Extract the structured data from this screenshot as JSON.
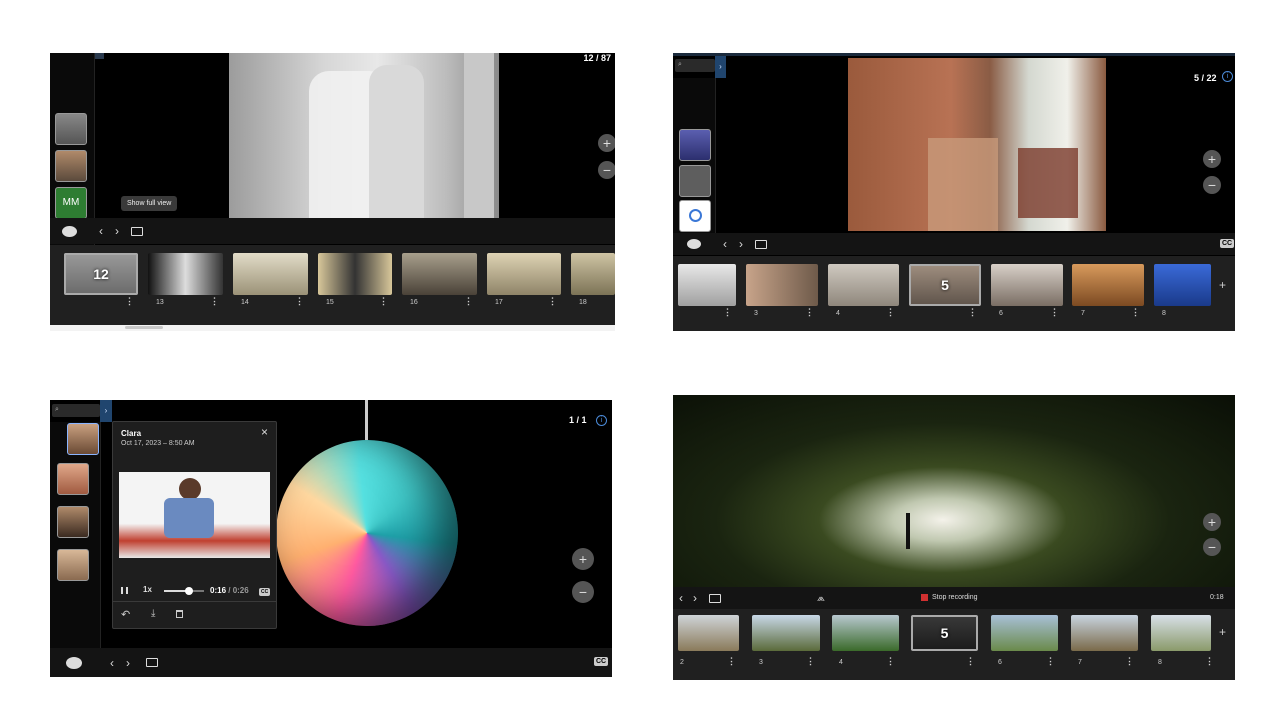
{
  "panel1": {
    "counter": "12 / 87",
    "tooltip": "Show full view",
    "avatar_initials": "MM",
    "thumb_selected_number": "12",
    "thumb_numbers": [
      "13",
      "14",
      "15",
      "16",
      "17",
      "18"
    ],
    "colors": {
      "avatar_mm": "#2e7d32"
    }
  },
  "panel2": {
    "counter": "5 / 22",
    "cc": "CC",
    "thumb_selected_number": "5",
    "thumb_numbers": [
      "3",
      "4",
      "6",
      "7",
      "8"
    ]
  },
  "panel3": {
    "counter": "1 / 1",
    "cc": "CC",
    "comment": {
      "author": "Clara",
      "date": "Oct 17, 2023 – 8:50 AM",
      "speed": "1x",
      "time_current": "0:16",
      "time_separator": " / ",
      "time_total": "0:26",
      "cc": "CC",
      "progress": 0.62
    }
  },
  "panel4": {
    "stop_recording": "Stop recording",
    "elapsed": "0:18",
    "thumb_selected_number": "5",
    "thumb_numbers": [
      "2",
      "3",
      "4",
      "6",
      "7",
      "8"
    ]
  },
  "icons": {
    "zoom_in": "+",
    "zoom_out": "−",
    "prev": "‹",
    "next": "›",
    "close": "×",
    "more": "⋮",
    "add": "+",
    "info": "i",
    "search": "⌕",
    "expand": "›"
  }
}
